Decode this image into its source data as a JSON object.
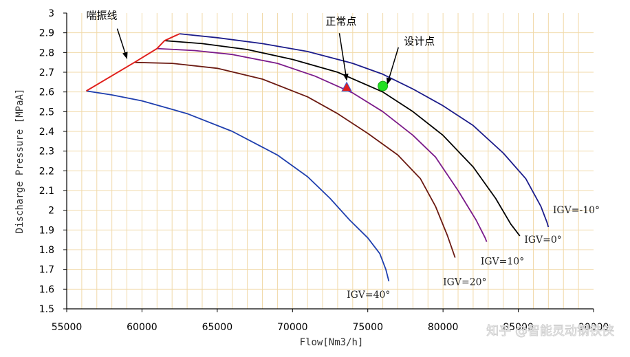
{
  "chart_data": {
    "type": "line",
    "title": "",
    "xlabel": "Flow[Nm3/h]",
    "ylabel": "Discharge Pressure [MPaA]",
    "xlim": [
      55000,
      90000
    ],
    "ylim": [
      1.5,
      3.0
    ],
    "x_ticks": [
      "55000",
      "60000",
      "65000",
      "70000",
      "75000",
      "80000",
      "85000",
      "90000"
    ],
    "y_ticks": [
      "1.5",
      "1.6",
      "1.7",
      "1.8",
      "1.9",
      "2",
      "2.1",
      "2.2",
      "2.3",
      "2.4",
      "2.5",
      "2.6",
      "2.7",
      "2.8",
      "2.9",
      "3"
    ],
    "grid": true,
    "series": [
      {
        "name": "IGV=-10°",
        "color": "#1c1c8a",
        "points": [
          [
            62500,
            2.895
          ],
          [
            65000,
            2.875
          ],
          [
            68000,
            2.845
          ],
          [
            71000,
            2.805
          ],
          [
            74000,
            2.745
          ],
          [
            76000,
            2.69
          ],
          [
            78000,
            2.615
          ],
          [
            80000,
            2.53
          ],
          [
            82000,
            2.43
          ],
          [
            84000,
            2.29
          ],
          [
            85500,
            2.16
          ],
          [
            86500,
            2.02
          ],
          [
            86900,
            1.94
          ],
          [
            87000,
            1.915
          ]
        ]
      },
      {
        "name": "IGV=0°",
        "color": "#000000",
        "points": [
          [
            61500,
            2.86
          ],
          [
            64000,
            2.845
          ],
          [
            67000,
            2.815
          ],
          [
            70000,
            2.765
          ],
          [
            73000,
            2.7
          ],
          [
            76000,
            2.6
          ],
          [
            78000,
            2.5
          ],
          [
            80000,
            2.38
          ],
          [
            82000,
            2.22
          ],
          [
            83500,
            2.06
          ],
          [
            84500,
            1.93
          ],
          [
            85100,
            1.87
          ]
        ]
      },
      {
        "name": "IGV=10°",
        "color": "#7b1b8a",
        "points": [
          [
            61000,
            2.82
          ],
          [
            63500,
            2.81
          ],
          [
            66000,
            2.79
          ],
          [
            69000,
            2.745
          ],
          [
            71500,
            2.68
          ],
          [
            74000,
            2.595
          ],
          [
            76000,
            2.5
          ],
          [
            78000,
            2.38
          ],
          [
            79500,
            2.27
          ],
          [
            81000,
            2.1
          ],
          [
            82200,
            1.95
          ],
          [
            82800,
            1.86
          ],
          [
            82900,
            1.84
          ]
        ]
      },
      {
        "name": "IGV=20°",
        "color": "#6b1a12",
        "points": [
          [
            59500,
            2.75
          ],
          [
            62000,
            2.745
          ],
          [
            65000,
            2.72
          ],
          [
            68000,
            2.665
          ],
          [
            71000,
            2.575
          ],
          [
            73000,
            2.49
          ],
          [
            75000,
            2.39
          ],
          [
            77000,
            2.28
          ],
          [
            78500,
            2.16
          ],
          [
            79500,
            2.02
          ],
          [
            80300,
            1.87
          ],
          [
            80800,
            1.76
          ]
        ]
      },
      {
        "name": "IGV=40°",
        "color": "#1f3fae",
        "points": [
          [
            56300,
            2.605
          ],
          [
            58000,
            2.585
          ],
          [
            60000,
            2.555
          ],
          [
            63000,
            2.49
          ],
          [
            66000,
            2.4
          ],
          [
            69000,
            2.28
          ],
          [
            71000,
            2.17
          ],
          [
            72500,
            2.06
          ],
          [
            73800,
            1.95
          ],
          [
            75000,
            1.86
          ],
          [
            75800,
            1.78
          ],
          [
            76200,
            1.7
          ],
          [
            76400,
            1.64
          ]
        ]
      }
    ],
    "surge_line": {
      "name": "喘振线",
      "color": "#e0201c",
      "points": [
        [
          56300,
          2.605
        ],
        [
          59500,
          2.75
        ],
        [
          61000,
          2.82
        ],
        [
          61500,
          2.86
        ],
        [
          62500,
          2.895
        ]
      ]
    },
    "markers": [
      {
        "name": "正常点",
        "x": 73600,
        "y": 2.625,
        "shape": "triangle",
        "color": "#e02020"
      },
      {
        "name": "设计点",
        "x": 76000,
        "y": 2.63,
        "shape": "circle",
        "color": "#22e022"
      }
    ],
    "annotations": [
      {
        "text": "喘振线",
        "x": 56300,
        "y": 2.97,
        "arrow_to": [
          59000,
          2.77
        ]
      },
      {
        "text": "正常点",
        "x": 72200,
        "y": 2.94,
        "arrow_to": [
          73600,
          2.66
        ]
      },
      {
        "text": "设计点",
        "x": 77400,
        "y": 2.84,
        "arrow_to": [
          76300,
          2.64
        ]
      }
    ],
    "series_labels": [
      {
        "text": "IGV=-10°",
        "x": 87300,
        "y": 1.985
      },
      {
        "text": "IGV=0°",
        "x": 85400,
        "y": 1.835
      },
      {
        "text": "IGV=10°",
        "x": 82500,
        "y": 1.725
      },
      {
        "text": "IGV=20°",
        "x": 80000,
        "y": 1.62
      },
      {
        "text": "IGV=40°",
        "x": 73600,
        "y": 1.555
      }
    ]
  },
  "watermark": "知乎 @智能灵动钢铁侠"
}
